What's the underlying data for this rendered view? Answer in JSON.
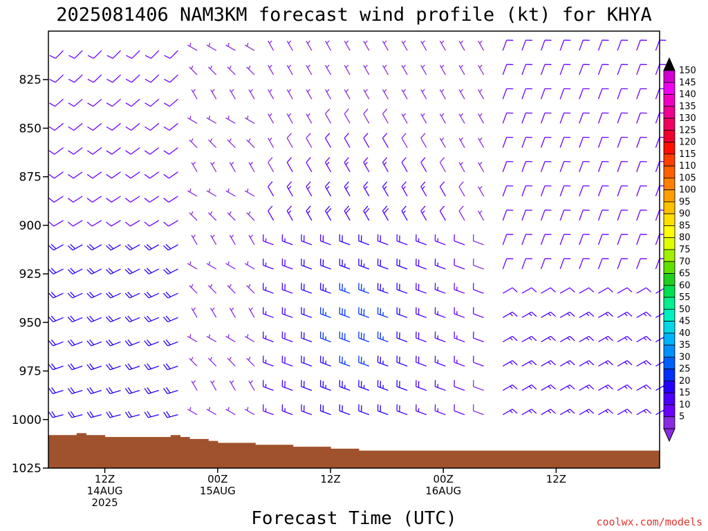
{
  "chart_data": {
    "type": "wind-profile",
    "title": "2025081406 NAM3KM forecast wind profile (kt) for KHYA",
    "xlabel": "Forecast Time (UTC)",
    "ylabel": "",
    "y_axis": {
      "scale": "pressure (reversed)",
      "ylim": [
        1025,
        800
      ],
      "ticks": [
        825,
        850,
        875,
        900,
        925,
        950,
        975,
        1000,
        1025
      ]
    },
    "x_axis": {
      "start": "2025-08-14 06Z",
      "end": "2025-08-16 23Z",
      "ticks": [
        {
          "time": "2025-08-14 12Z",
          "line1": "12Z",
          "line2": "14AUG",
          "line3": "2025"
        },
        {
          "time": "2025-08-15 00Z",
          "line1": "00Z",
          "line2": "15AUG",
          "line3": ""
        },
        {
          "time": "2025-08-15 12Z",
          "line1": "12Z",
          "line2": "",
          "line3": ""
        },
        {
          "time": "2025-08-16 00Z",
          "line1": "00Z",
          "line2": "16AUG",
          "line3": ""
        },
        {
          "time": "2025-08-16 12Z",
          "line1": "12Z",
          "line2": "",
          "line3": ""
        }
      ]
    },
    "colorbar": {
      "units": "kt",
      "labels": [
        5,
        10,
        15,
        20,
        25,
        30,
        35,
        40,
        45,
        50,
        55,
        60,
        65,
        70,
        75,
        80,
        85,
        90,
        95,
        100,
        105,
        110,
        115,
        120,
        125,
        130,
        135,
        140,
        145,
        150
      ],
      "colors": [
        "#8a2be2",
        "#6a00ff",
        "#4b00ff",
        "#2400ff",
        "#0030ff",
        "#0060ff",
        "#0090ff",
        "#00b4ff",
        "#00d8e8",
        "#00f0c0",
        "#00f090",
        "#00e050",
        "#20d020",
        "#60e000",
        "#a0f000",
        "#e0ff00",
        "#ffff00",
        "#ffe000",
        "#ffc000",
        "#ffa000",
        "#ff8000",
        "#ff6000",
        "#ff4000",
        "#ff1000",
        "#f00030",
        "#f00060",
        "#f00090",
        "#f000c0",
        "#f000f0",
        "#d000d0"
      ],
      "arrow_below": "#8a2be2",
      "arrow_above": "#000000"
    },
    "wind_field_note": "",
    "surface": {
      "color": "#a0522d",
      "surface_pressure": [
        1008,
        1008,
        1008,
        1008,
        1008,
        1007,
        1007,
        1008,
        1008,
        1008,
        1009,
        1009,
        1009,
        1009,
        1009,
        1009,
        1009,
        1009,
        1009,
        1009,
        1009,
        1009,
        1009,
        1009,
        1008,
        1009,
        1009,
        1010,
        1010,
        1010,
        1011,
        1011,
        1012,
        1012,
        1012,
        1012,
        1012,
        1012,
        1012,
        1012,
        1013,
        1013,
        1013,
        1013,
        1013,
        1013,
        1013,
        1014,
        1014,
        1014,
        1014,
        1014,
        1014,
        1014,
        1015,
        1015,
        1015,
        1015,
        1015,
        1015,
        1016,
        1016,
        1016,
        1016,
        1016,
        1016,
        1016,
        1016,
        1016,
        1016,
        1016,
        1016,
        1016,
        1016,
        1016,
        1016,
        1016,
        1016,
        1016,
        1016,
        1016,
        1016,
        1016,
        1016,
        1016,
        1016,
        1016,
        1016,
        1016,
        1016,
        1016,
        1016,
        1016,
        1016,
        1016,
        1016,
        1016,
        1016,
        1016,
        1016,
        1016,
        1016,
        1016,
        1016,
        1016,
        1016,
        1016,
        1016,
        1016,
        1016,
        1016,
        1016,
        1016,
        1016,
        1016,
        1016,
        1016,
        1016,
        1016,
        1016
      ]
    }
  },
  "credit": "coolwx.com/models",
  "colors": {
    "background": "#ffffff",
    "axis": "#000000",
    "surface": "#a0522d",
    "credit": "#e3342f"
  }
}
